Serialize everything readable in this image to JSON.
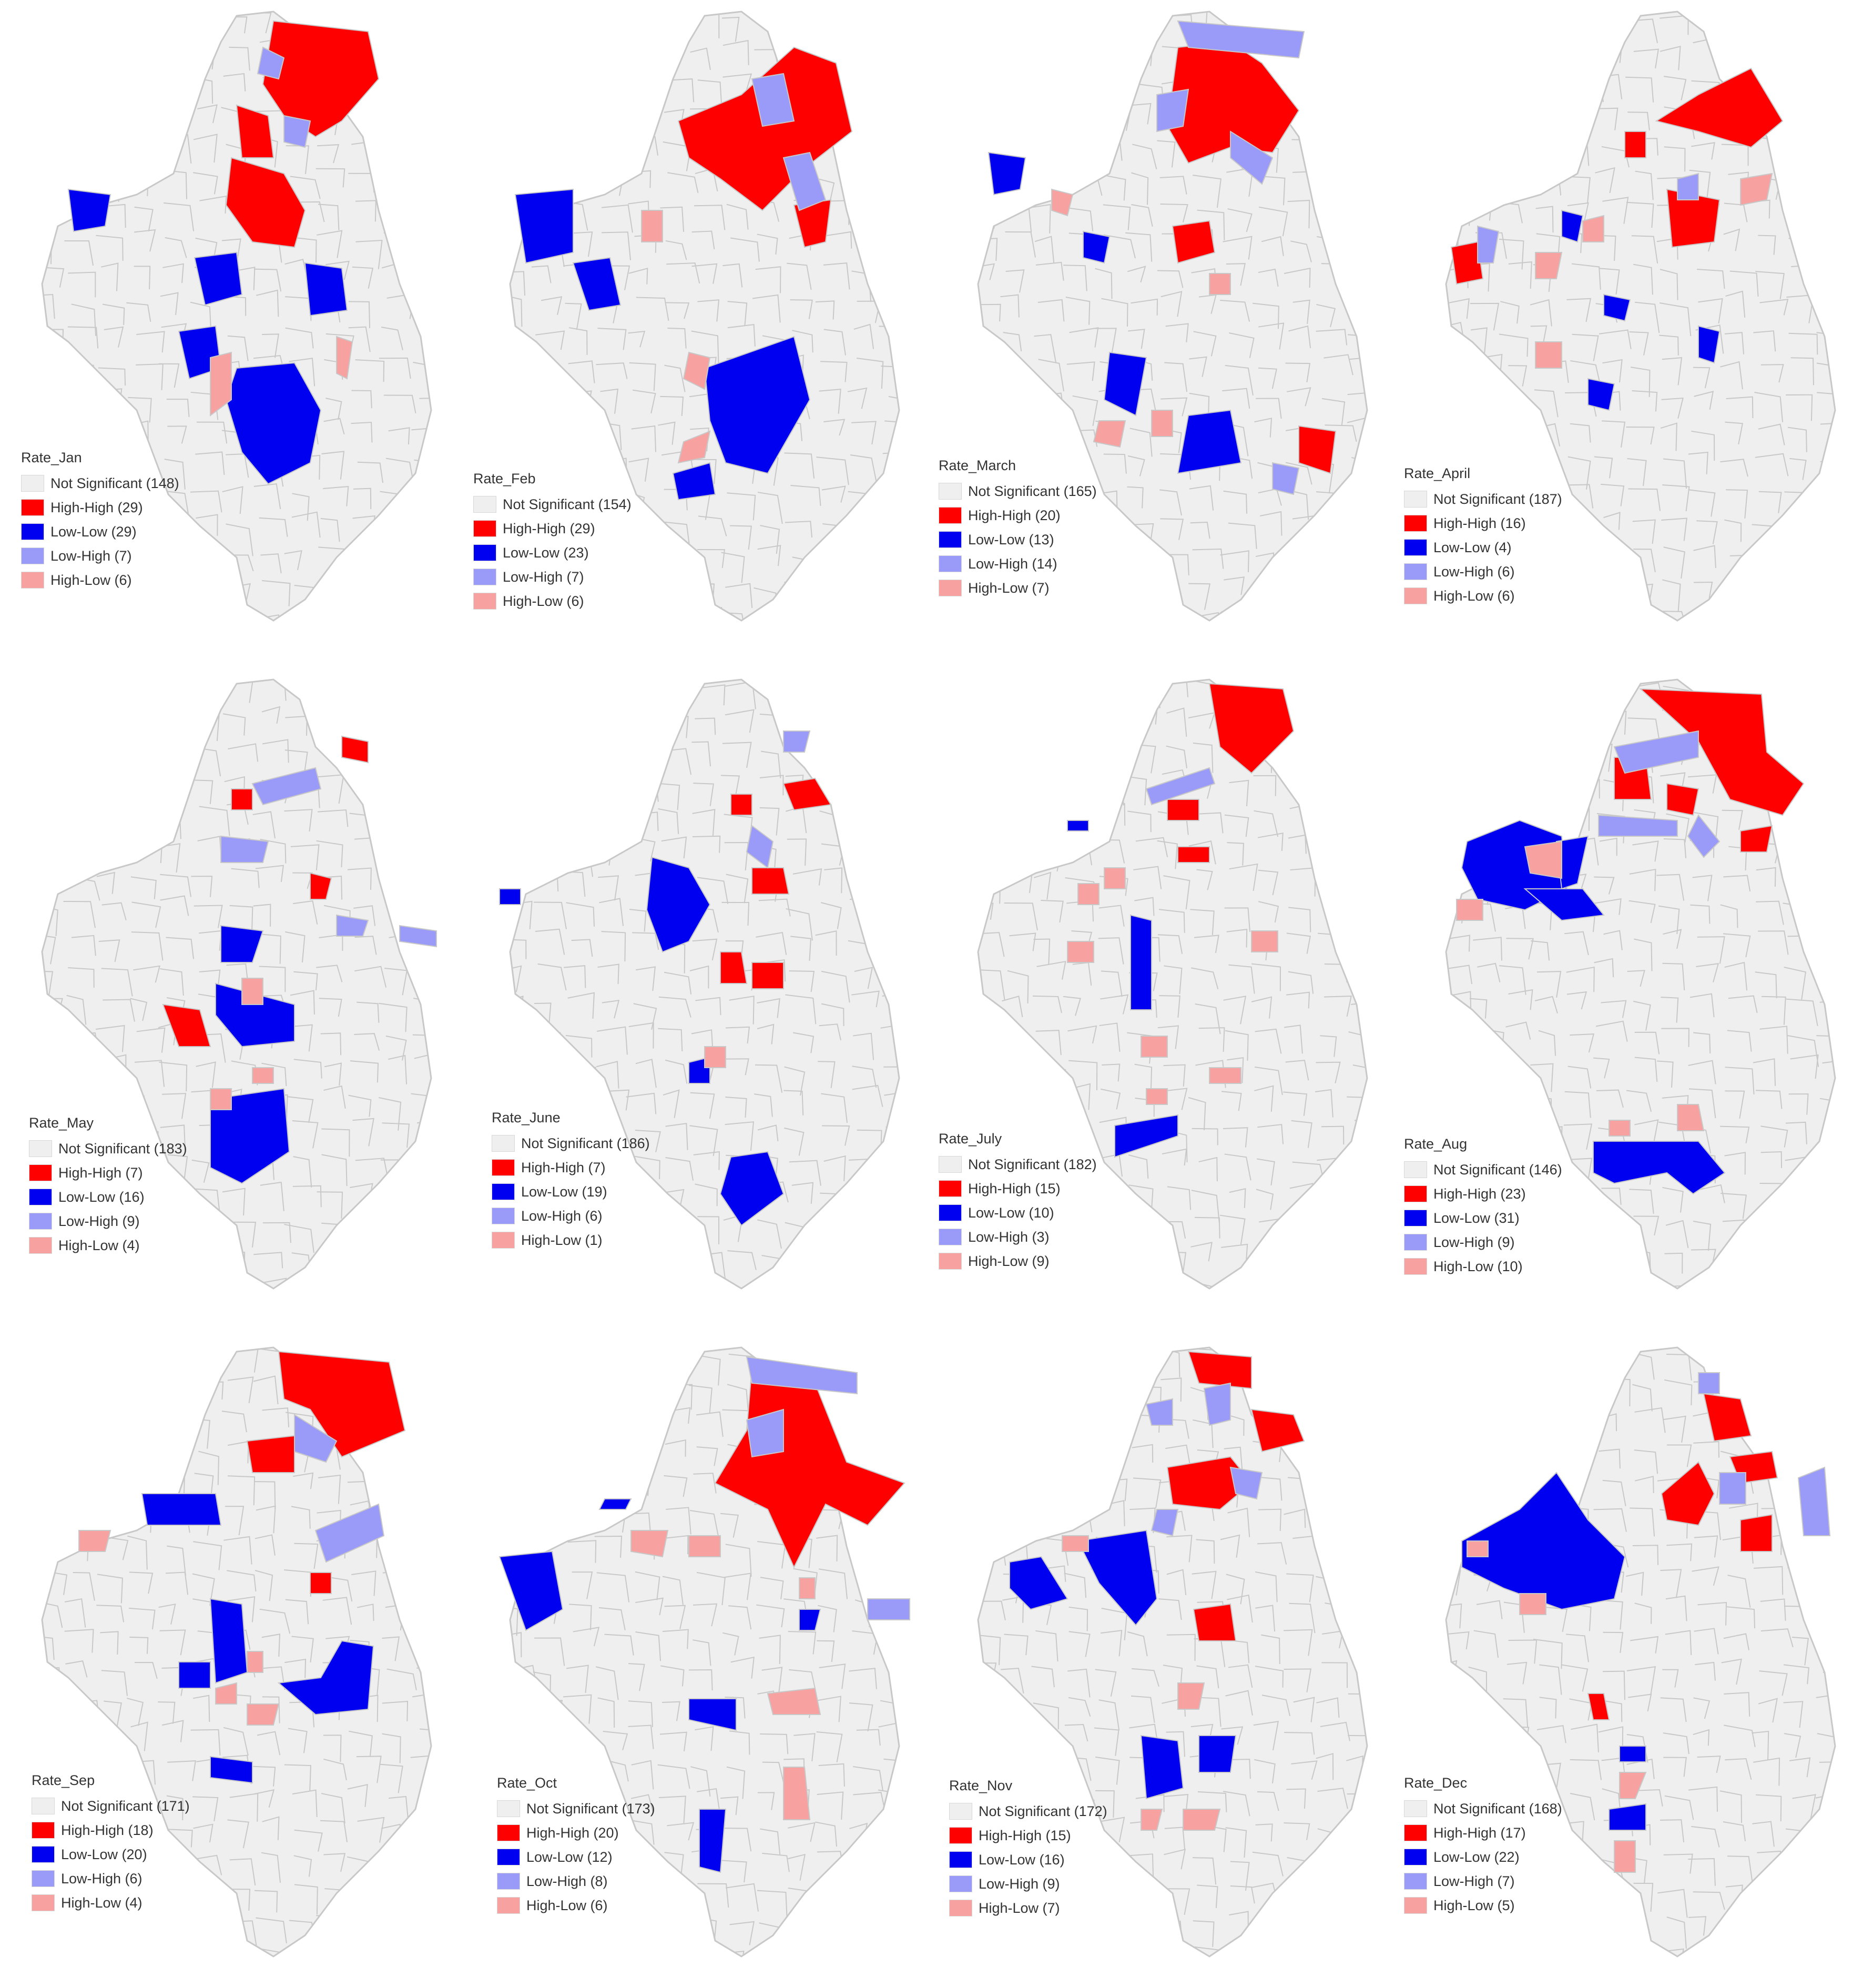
{
  "category_colors": {
    "not_significant": "#efefef",
    "high_high": "#ff0000",
    "low_low": "#0000f0",
    "low_high": "#9a9af8",
    "high_low": "#f7a1a1"
  },
  "border_color": "#c8c8c8",
  "panels": [
    {
      "legend_title": "Rate_Jan",
      "items": [
        {
          "label": "Not Significant (148)",
          "category": "not_significant"
        },
        {
          "label": "High-High (29)",
          "category": "high_high"
        },
        {
          "label": "Low-Low (29)",
          "category": "low_low"
        },
        {
          "label": "Low-High (7)",
          "category": "low_high"
        },
        {
          "label": "High-Low (6)",
          "category": "high_low"
        }
      ]
    },
    {
      "legend_title": "Rate_Feb",
      "items": [
        {
          "label": "Not Significant (154)",
          "category": "not_significant"
        },
        {
          "label": "High-High (29)",
          "category": "high_high"
        },
        {
          "label": "Low-Low (23)",
          "category": "low_low"
        },
        {
          "label": "Low-High (7)",
          "category": "low_high"
        },
        {
          "label": "High-Low (6)",
          "category": "high_low"
        }
      ]
    },
    {
      "legend_title": "Rate_March",
      "items": [
        {
          "label": "Not Significant (165)",
          "category": "not_significant"
        },
        {
          "label": "High-High (20)",
          "category": "high_high"
        },
        {
          "label": "Low-Low (13)",
          "category": "low_low"
        },
        {
          "label": "Low-High (14)",
          "category": "low_high"
        },
        {
          "label": "High-Low (7)",
          "category": "high_low"
        }
      ]
    },
    {
      "legend_title": "Rate_April",
      "items": [
        {
          "label": "Not Significant (187)",
          "category": "not_significant"
        },
        {
          "label": "High-High (16)",
          "category": "high_high"
        },
        {
          "label": "Low-Low (4)",
          "category": "low_low"
        },
        {
          "label": "Low-High (6)",
          "category": "low_high"
        },
        {
          "label": "High-Low (6)",
          "category": "high_low"
        }
      ]
    },
    {
      "legend_title": "Rate_May",
      "items": [
        {
          "label": "Not Significant (183)",
          "category": "not_significant"
        },
        {
          "label": "High-High (7)",
          "category": "high_high"
        },
        {
          "label": "Low-Low (16)",
          "category": "low_low"
        },
        {
          "label": "Low-High (9)",
          "category": "low_high"
        },
        {
          "label": "High-Low (4)",
          "category": "high_low"
        }
      ]
    },
    {
      "legend_title": "Rate_June",
      "items": [
        {
          "label": "Not Significant (186)",
          "category": "not_significant"
        },
        {
          "label": "High-High (7)",
          "category": "high_high"
        },
        {
          "label": "Low-Low (19)",
          "category": "low_low"
        },
        {
          "label": "Low-High (6)",
          "category": "low_high"
        },
        {
          "label": "High-Low (1)",
          "category": "high_low"
        }
      ]
    },
    {
      "legend_title": "Rate_July",
      "items": [
        {
          "label": "Not Significant (182)",
          "category": "not_significant"
        },
        {
          "label": "High-High (15)",
          "category": "high_high"
        },
        {
          "label": "Low-Low (10)",
          "category": "low_low"
        },
        {
          "label": "Low-High (3)",
          "category": "low_high"
        },
        {
          "label": "High-Low (9)",
          "category": "high_low"
        }
      ]
    },
    {
      "legend_title": "Rate_Aug",
      "items": [
        {
          "label": "Not Significant (146)",
          "category": "not_significant"
        },
        {
          "label": "High-High (23)",
          "category": "high_high"
        },
        {
          "label": "Low-Low (31)",
          "category": "low_low"
        },
        {
          "label": "Low-High (9)",
          "category": "low_high"
        },
        {
          "label": "High-Low (10)",
          "category": "high_low"
        }
      ]
    },
    {
      "legend_title": "Rate_Sep",
      "items": [
        {
          "label": "Not Significant (171)",
          "category": "not_significant"
        },
        {
          "label": "High-High (18)",
          "category": "high_high"
        },
        {
          "label": "Low-Low (20)",
          "category": "low_low"
        },
        {
          "label": "Low-High (6)",
          "category": "low_high"
        },
        {
          "label": "High-Low (4)",
          "category": "high_low"
        }
      ]
    },
    {
      "legend_title": "Rate_Oct",
      "items": [
        {
          "label": "Not Significant (173)",
          "category": "not_significant"
        },
        {
          "label": "High-High (20)",
          "category": "high_high"
        },
        {
          "label": "Low-Low (12)",
          "category": "low_low"
        },
        {
          "label": "Low-High (8)",
          "category": "low_high"
        },
        {
          "label": "High-Low (6)",
          "category": "high_low"
        }
      ]
    },
    {
      "legend_title": "Rate_Nov",
      "items": [
        {
          "label": "Not Significant (172)",
          "category": "not_significant"
        },
        {
          "label": "High-High (15)",
          "category": "high_high"
        },
        {
          "label": "Low-Low (16)",
          "category": "low_low"
        },
        {
          "label": "Low-High (9)",
          "category": "low_high"
        },
        {
          "label": "High-Low (7)",
          "category": "high_low"
        }
      ]
    },
    {
      "legend_title": "Rate_Dec",
      "items": [
        {
          "label": "Not Significant (168)",
          "category": "not_significant"
        },
        {
          "label": "High-High (17)",
          "category": "high_high"
        },
        {
          "label": "Low-Low (22)",
          "category": "low_low"
        },
        {
          "label": "Low-High (7)",
          "category": "low_high"
        },
        {
          "label": "High-Low (5)",
          "category": "high_low"
        }
      ]
    }
  ]
}
